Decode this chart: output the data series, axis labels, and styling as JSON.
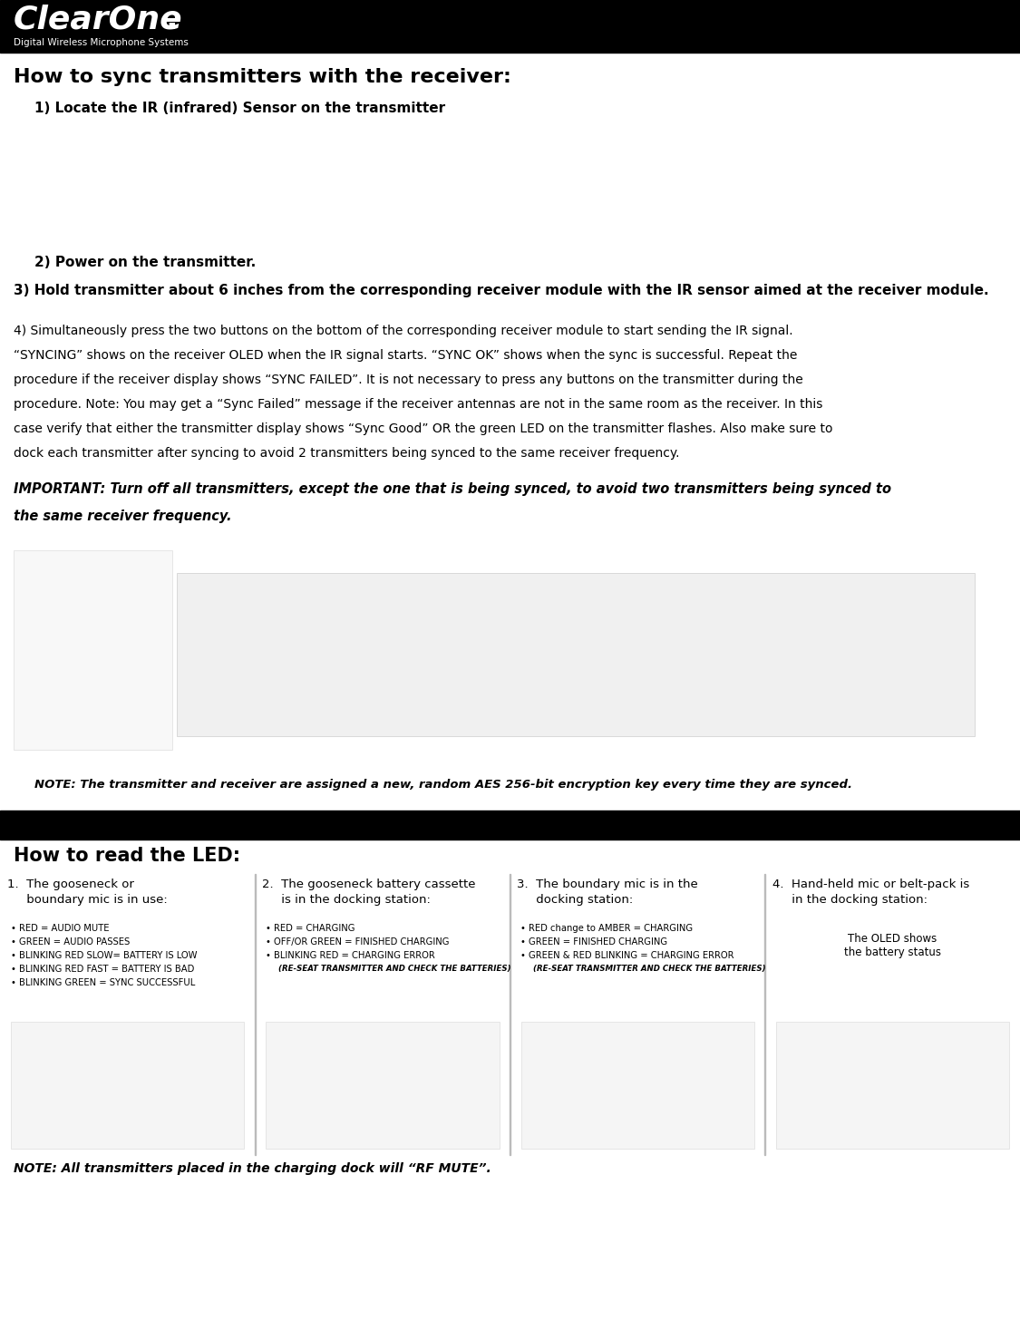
{
  "bg_color": "#ffffff",
  "header_bg": "#000000",
  "header_text_color": "#ffffff",
  "section1_title": "How to sync transmitters with the receiver:",
  "step1": "1) Locate the IR (infrared) Sensor on the transmitter",
  "step2": "2) Power on the transmitter.",
  "step3": "3) Hold transmitter about 6 inches from the corresponding receiver module with the IR sensor aimed at the receiver module.",
  "step4_para": "4) Simultaneously press the two buttons on the bottom of the corresponding receiver module to start sending the IR signal. “SYNCING” shows on the receiver OLED when the IR signal starts. “SYNC OK” shows when the sync is successful. Repeat the procedure if the receiver display shows “SYNC FAILED”. It is not necessary to press any buttons on the transmitter during the procedure. Note: You may get a “Sync Failed” message if the receiver antennas are not in the same room as the receiver. In this case verify that either the transmitter display shows “Sync Good” OR the green LED on the transmitter flashes. Also make sure to dock each transmitter after syncing to avoid 2 transmitters being synced to the same receiver frequency.",
  "step4_lines": [
    "4) Simultaneously press the two buttons on the bottom of the corresponding receiver module to start sending the IR signal.",
    "“SYNCING” shows on the receiver OLED when the IR signal starts. “SYNC OK” shows when the sync is successful. Repeat the",
    "procedure if the receiver display shows “SYNC FAILED”. It is not necessary to press any buttons on the transmitter during the",
    "procedure. Note: You may get a “Sync Failed” message if the receiver antennas are not in the same room as the receiver. In this",
    "case verify that either the transmitter display shows “Sync Good” OR the green LED on the transmitter flashes. Also make sure to",
    "dock each transmitter after syncing to avoid 2 transmitters being synced to the same receiver frequency."
  ],
  "important_lines": [
    "IMPORTANT: Turn off all transmitters, except the one that is being synced, to avoid two transmitters being synced to",
    "the same receiver frequency."
  ],
  "note_encryption": "NOTE: The transmitter and receiver are assigned a new, random AES 256-bit encryption key every time they are synced.",
  "section2_title": "How to read the LED:",
  "col1_title_line1": "1.  The gooseneck or",
  "col1_title_line2": "     boundary mic is in use:",
  "col1_bullets": [
    "RED = AUDIO MUTE",
    "GREEN = AUDIO PASSES",
    "BLINKING RED SLOW= BATTERY IS LOW",
    "BLINKING RED FAST = BATTERY IS BAD",
    "BLINKING GREEN = SYNC SUCCESSFUL"
  ],
  "col2_title_line1": "2.  The gooseneck battery cassette",
  "col2_title_line2": "     is in the docking station:",
  "col2_bullets": [
    "RED = CHARGING",
    "OFF/OR GREEN = FINISHED CHARGING",
    "BLINKING RED = CHARGING ERROR",
    "INDENT(RE-SEAT TRANSMITTER AND CHECK THE BATTERIES)"
  ],
  "col3_title_line1": "3.  The boundary mic is in the",
  "col3_title_line2": "     docking station:",
  "col3_bullets": [
    "RED change to AMBER = CHARGING",
    "GREEN = FINISHED CHARGING",
    "GREEN & RED BLINKING = CHARGING ERROR",
    "INDENT(RE-SEAT TRANSMITTER AND CHECK THE BATTERIES)"
  ],
  "col4_title_line1": "4.  Hand-held mic or belt-pack is",
  "col4_title_line2": "     in the docking station:",
  "col4_note": "The OLED shows\nthe battery status",
  "note_rf_mute": "NOTE: All transmitters placed in the charging dock will “RF MUTE”.",
  "divider_color": "#cccccc",
  "text_color": "#000000"
}
